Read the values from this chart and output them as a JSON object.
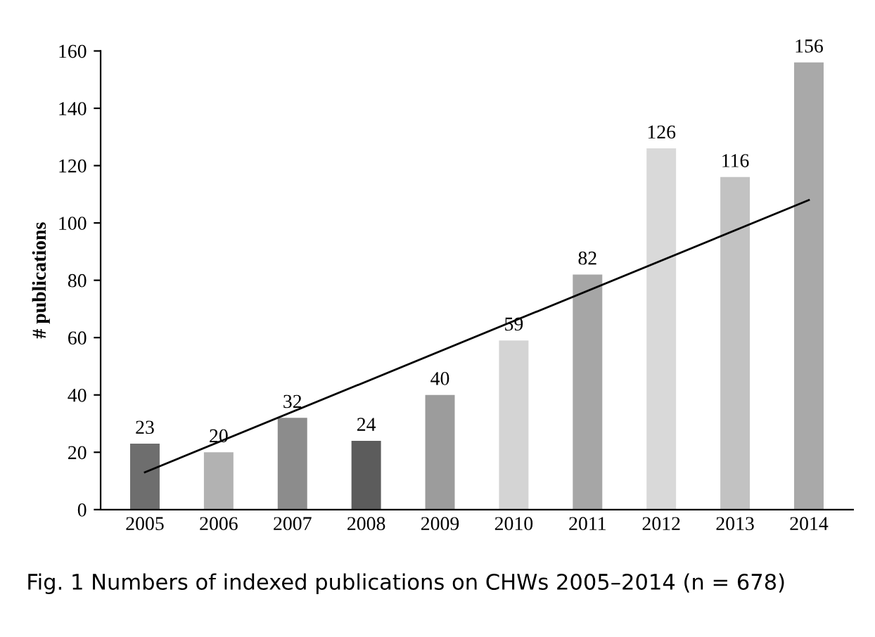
{
  "chart_data": {
    "type": "bar",
    "ylabel": "# publications",
    "categories": [
      "2005",
      "2006",
      "2007",
      "2008",
      "2009",
      "2010",
      "2011",
      "2012",
      "2013",
      "2014"
    ],
    "series": [
      {
        "values": [
          23,
          20,
          32,
          24,
          40,
          59,
          82,
          126,
          116,
          156
        ],
        "value_labels": [
          "23",
          "20",
          "32",
          "24",
          "40",
          "59",
          "82",
          "126",
          "116",
          "156"
        ],
        "colors": [
          "#6e6e6e",
          "#b2b2b2",
          "#8c8c8c",
          "#5c5c5c",
          "#9c9c9c",
          "#d4d4d4",
          "#a6a6a6",
          "#d9d9d9",
          "#c2c2c2",
          "#a9a9a9"
        ]
      },
      {
        "type": "line",
        "color": "#000000",
        "values": [
          13,
          null,
          null,
          null,
          null,
          null,
          null,
          null,
          null,
          108
        ]
      }
    ],
    "ylim": [
      0,
      160
    ],
    "yticks": [
      0,
      20,
      40,
      60,
      80,
      100,
      120,
      140,
      160
    ],
    "grid": false,
    "legend": false,
    "annotations": [
      "Fig. 1 Numbers of indexed publications on CHWs 2005–2014 (n = 678)"
    ]
  }
}
